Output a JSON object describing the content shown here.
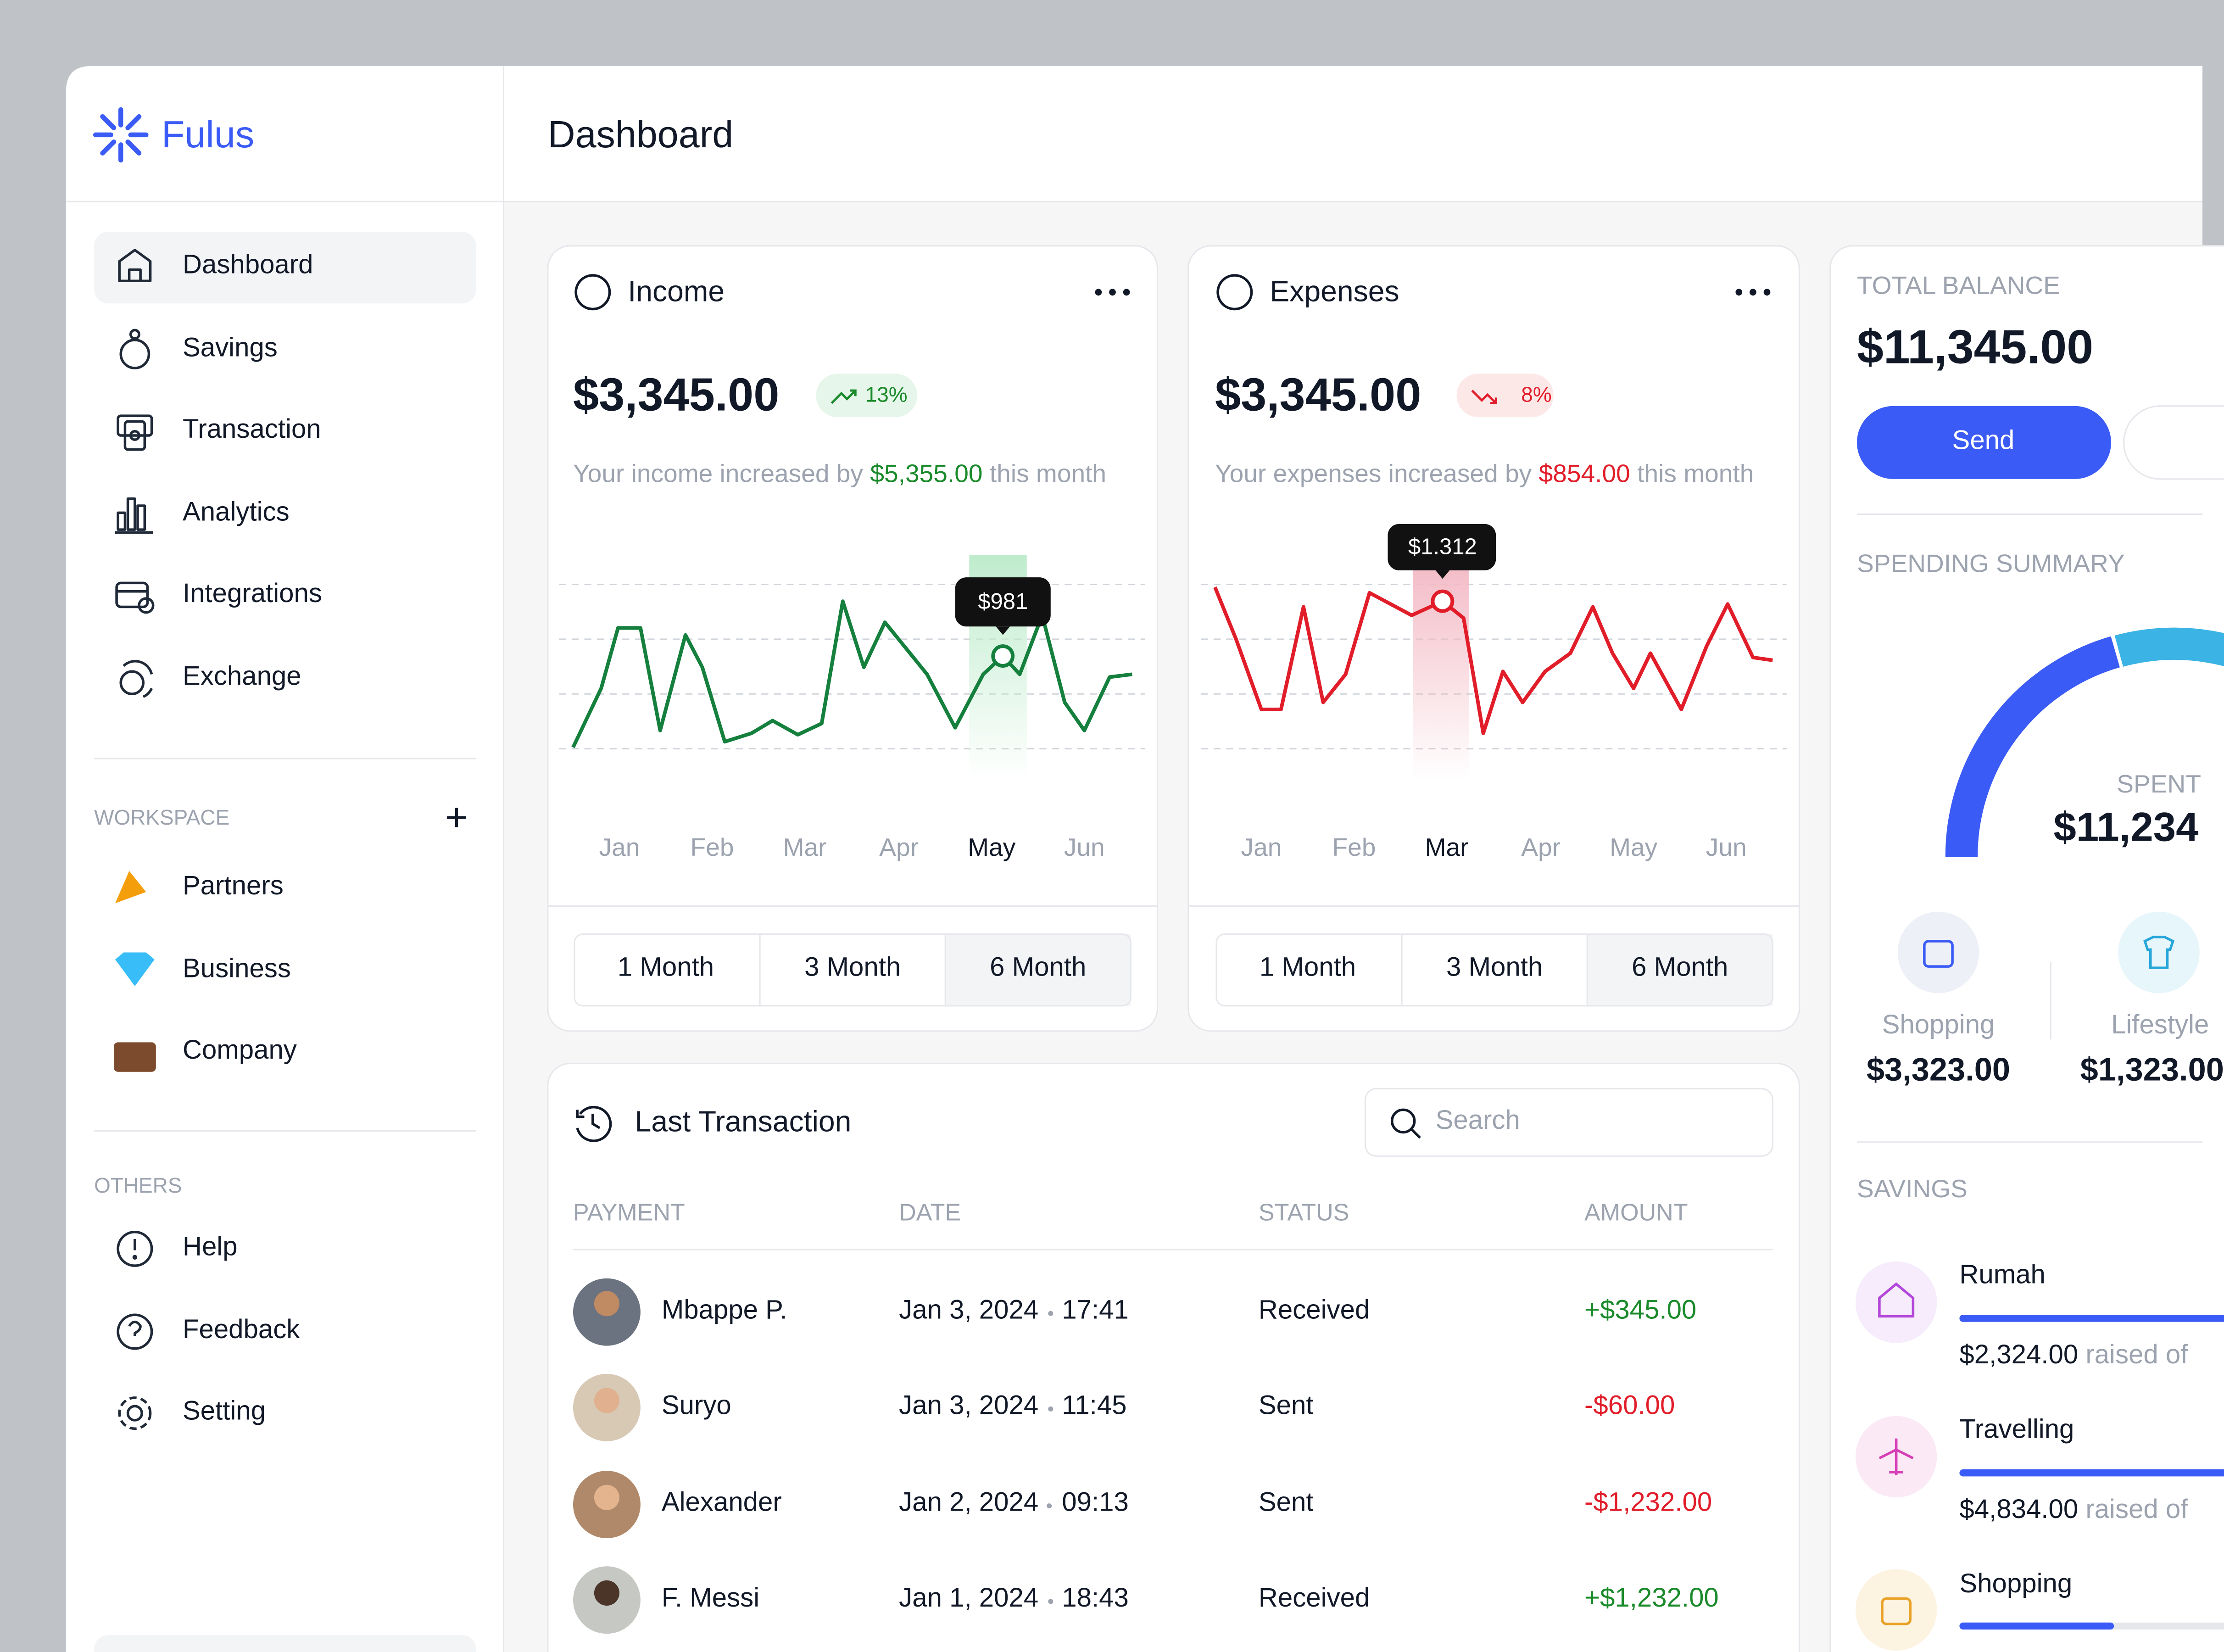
{
  "brand": "Fulus",
  "header": {
    "title": "Dashboard"
  },
  "nav": {
    "main": [
      "Dashboard",
      "Savings",
      "Transaction",
      "Analytics",
      "Integrations",
      "Exchange"
    ],
    "workspace": {
      "title": "WORKSPACE",
      "add": "+",
      "items": [
        "Partners",
        "Business",
        "Company"
      ]
    },
    "others": {
      "title": "OTHERS",
      "items": [
        "Help",
        "Feedback",
        "Setting"
      ]
    }
  },
  "income": {
    "title": "Income",
    "amount": "$3,345.00",
    "change": "13%",
    "note": [
      "Your income increased by",
      "$5,355.00",
      "this month"
    ],
    "tooltip": "$981",
    "months": [
      "Jan",
      "Feb",
      "Mar",
      "Apr",
      "May",
      "Jun"
    ],
    "tabs": [
      "1 Month",
      "3 Month",
      "6 Month"
    ]
  },
  "expenses": {
    "title": "Expenses",
    "amount": "$3,345.00",
    "change": "8%",
    "note": [
      "Your expenses increased by",
      "$854.00",
      "this month"
    ],
    "tooltip": "$1.312",
    "months": [
      "Jan",
      "Feb",
      "Mar",
      "Apr",
      "May",
      "Jun"
    ],
    "tabs": [
      "1 Month",
      "3 Month",
      "6 Month"
    ]
  },
  "transactions": {
    "title": "Last Transaction",
    "search": "Search",
    "columns": [
      "PAYMENT",
      "DATE",
      "STATUS",
      "AMOUNT"
    ],
    "rows": [
      {
        "name": "Mbappe P.",
        "date": "Jan 3, 2024",
        "time": "17:41",
        "status": "Received",
        "amount": "+$345.00"
      },
      {
        "name": "Suryo",
        "date": "Jan 3, 2024",
        "time": "11:45",
        "status": "Sent",
        "amount": "-$60.00"
      },
      {
        "name": "Alexander",
        "date": "Jan 2, 2024",
        "time": "09:13",
        "status": "Sent",
        "amount": "-$1,232.00"
      },
      {
        "name": "F. Messi",
        "date": "Jan 1, 2024",
        "time": "18:43",
        "status": "Received",
        "amount": "+$1,232.00"
      }
    ]
  },
  "balance": {
    "label": "TOTAL BALANCE",
    "amount": "$11,345.00",
    "send": "Send"
  },
  "spending": {
    "title": "SPENDING SUMMARY",
    "spent_label": "SPENT",
    "spent": "$11,234",
    "categories": [
      {
        "name": "Shopping",
        "amount": "$3,323.00"
      },
      {
        "name": "Lifestyle",
        "amount": "$1,323.00"
      }
    ]
  },
  "savings": {
    "title": "SAVINGS",
    "raised": "raised of",
    "items": [
      {
        "name": "Rumah",
        "amount": "$2,324.00"
      },
      {
        "name": "Travelling",
        "amount": "$4,834.00"
      },
      {
        "name": "Shopping"
      }
    ]
  }
}
